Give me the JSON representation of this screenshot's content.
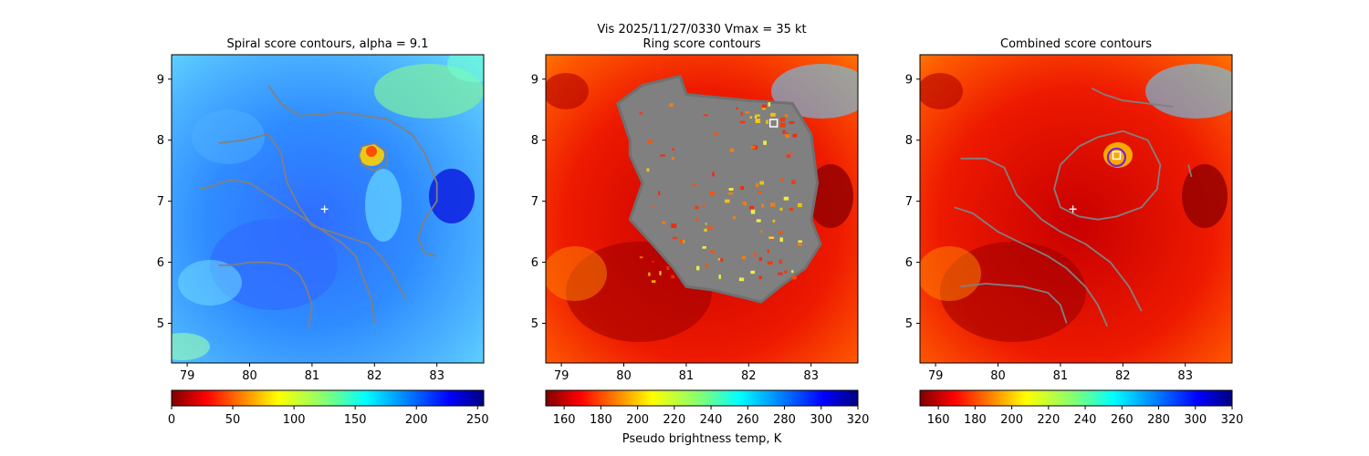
{
  "suptitle": "Vis  2025/11/27/0330    Vmax = 35 kt",
  "colorbar_label": "Pseudo brightness temp, K",
  "chart_data": [
    {
      "type": "heatmap",
      "title": "Spiral score contours, alpha =  9.1",
      "xlim": [
        78.75,
        83.75
      ],
      "ylim": [
        4.35,
        9.4
      ],
      "xticks": [
        "79",
        "80",
        "81",
        "82",
        "83"
      ],
      "yticks": [
        "5",
        "6",
        "7",
        "8",
        "9"
      ],
      "colorbar": {
        "min": 0,
        "max": 255,
        "ticks": [
          "0",
          "50",
          "100",
          "150",
          "200",
          "250"
        ]
      },
      "colormap": "jet_r",
      "center_marker": [
        81.2,
        6.87
      ],
      "contours": [
        [
          [
            80.95,
            4.92
          ],
          [
            81.0,
            5.3
          ],
          [
            80.9,
            5.6
          ],
          [
            80.8,
            5.8
          ],
          [
            80.6,
            5.95
          ],
          [
            80.3,
            6.0
          ],
          [
            80.0,
            6.0
          ],
          [
            79.7,
            5.95
          ],
          [
            79.5,
            5.95
          ]
        ],
        [
          [
            82.0,
            5.0
          ],
          [
            81.95,
            5.4
          ],
          [
            81.8,
            5.8
          ],
          [
            81.7,
            6.1
          ],
          [
            81.5,
            6.3
          ],
          [
            81.2,
            6.5
          ],
          [
            80.9,
            6.7
          ],
          [
            80.6,
            6.9
          ],
          [
            80.3,
            7.1
          ],
          [
            80.0,
            7.3
          ],
          [
            79.7,
            7.35
          ],
          [
            79.4,
            7.25
          ],
          [
            79.2,
            7.2
          ]
        ],
        [
          [
            82.5,
            5.4
          ],
          [
            82.3,
            5.8
          ],
          [
            82.1,
            6.1
          ],
          [
            81.9,
            6.3
          ],
          [
            81.6,
            6.4
          ],
          [
            81.3,
            6.5
          ],
          [
            81.0,
            6.6
          ],
          [
            80.8,
            6.9
          ],
          [
            80.6,
            7.3
          ],
          [
            80.5,
            7.8
          ],
          [
            80.3,
            8.1
          ],
          [
            79.9,
            8.0
          ],
          [
            79.5,
            7.95
          ]
        ],
        [
          [
            83.0,
            6.1
          ],
          [
            82.8,
            6.15
          ],
          [
            82.7,
            6.4
          ],
          [
            82.8,
            6.7
          ],
          [
            83.0,
            7.0
          ],
          [
            83.0,
            7.3
          ],
          [
            82.8,
            7.8
          ],
          [
            82.6,
            8.1
          ],
          [
            82.2,
            8.35
          ],
          [
            81.5,
            8.45
          ],
          [
            80.8,
            8.4
          ],
          [
            80.5,
            8.6
          ],
          [
            80.3,
            8.9
          ]
        ],
        [
          [
            81.8,
            7.9
          ],
          [
            82.0,
            7.95
          ],
          [
            82.2,
            7.8
          ],
          [
            82.2,
            7.6
          ],
          [
            82.0,
            7.5
          ],
          [
            81.8,
            7.6
          ],
          [
            81.75,
            7.75
          ],
          [
            81.8,
            7.9
          ]
        ]
      ]
    },
    {
      "type": "heatmap",
      "title": "Ring score contours",
      "xlim": [
        78.75,
        83.75
      ],
      "ylim": [
        4.35,
        9.4
      ],
      "xticks": [
        "79",
        "80",
        "81",
        "82",
        "83"
      ],
      "yticks": [
        "5",
        "6",
        "7",
        "8",
        "9"
      ],
      "colorbar": {
        "min": 150,
        "max": 320,
        "ticks": [
          "160",
          "180",
          "200",
          "220",
          "240",
          "260",
          "280",
          "300",
          "320"
        ]
      },
      "colormap": "jet_r",
      "square_marker": [
        82.4,
        8.28
      ],
      "contour_region": [
        [
          80.1,
          8.0
        ],
        [
          79.9,
          8.6
        ],
        [
          80.3,
          8.9
        ],
        [
          80.9,
          9.05
        ],
        [
          81.0,
          8.75
        ],
        [
          82.0,
          8.65
        ],
        [
          82.7,
          8.6
        ],
        [
          83.0,
          8.1
        ],
        [
          83.1,
          7.3
        ],
        [
          83.0,
          6.7
        ],
        [
          83.15,
          6.3
        ],
        [
          82.9,
          5.9
        ],
        [
          82.5,
          5.6
        ],
        [
          82.2,
          5.35
        ],
        [
          81.4,
          5.55
        ],
        [
          81.0,
          5.6
        ],
        [
          80.8,
          5.9
        ],
        [
          80.5,
          6.25
        ],
        [
          80.1,
          6.7
        ],
        [
          80.3,
          7.3
        ],
        [
          80.1,
          7.75
        ]
      ]
    },
    {
      "type": "heatmap",
      "title": "Combined score contours",
      "xlim": [
        78.75,
        83.75
      ],
      "ylim": [
        4.35,
        9.4
      ],
      "xticks": [
        "79",
        "80",
        "81",
        "82",
        "83"
      ],
      "yticks": [
        "5",
        "6",
        "7",
        "8",
        "9"
      ],
      "colorbar": {
        "min": 150,
        "max": 320,
        "ticks": [
          "160",
          "180",
          "200",
          "220",
          "240",
          "260",
          "280",
          "300",
          "320"
        ]
      },
      "colormap": "jet_r",
      "center_marker": [
        81.2,
        6.87
      ],
      "square_marker": [
        81.9,
        7.75
      ],
      "circle_marker": [
        81.9,
        7.72
      ],
      "contours": [
        [
          [
            81.1,
            5.0
          ],
          [
            81.0,
            5.3
          ],
          [
            80.8,
            5.5
          ],
          [
            80.4,
            5.6
          ],
          [
            79.8,
            5.65
          ],
          [
            79.4,
            5.6
          ]
        ],
        [
          [
            81.75,
            4.95
          ],
          [
            81.6,
            5.3
          ],
          [
            81.4,
            5.6
          ],
          [
            81.1,
            5.9
          ],
          [
            80.8,
            6.1
          ],
          [
            80.4,
            6.3
          ],
          [
            80.0,
            6.5
          ],
          [
            79.6,
            6.8
          ],
          [
            79.3,
            6.9
          ]
        ],
        [
          [
            82.3,
            5.2
          ],
          [
            82.1,
            5.6
          ],
          [
            81.8,
            6.0
          ],
          [
            81.4,
            6.3
          ],
          [
            81.0,
            6.5
          ],
          [
            80.7,
            6.7
          ],
          [
            80.3,
            7.1
          ],
          [
            80.1,
            7.55
          ],
          [
            79.8,
            7.7
          ],
          [
            79.4,
            7.7
          ]
        ],
        [
          [
            81.3,
            7.9
          ],
          [
            81.6,
            8.05
          ],
          [
            82.0,
            8.15
          ],
          [
            82.4,
            8.0
          ],
          [
            82.6,
            7.6
          ],
          [
            82.55,
            7.2
          ],
          [
            82.3,
            6.9
          ],
          [
            81.9,
            6.75
          ],
          [
            81.6,
            6.7
          ],
          [
            81.3,
            6.75
          ],
          [
            81.0,
            6.9
          ],
          [
            80.9,
            7.2
          ],
          [
            81.0,
            7.6
          ],
          [
            81.3,
            7.9
          ]
        ],
        [
          [
            82.8,
            8.55
          ],
          [
            82.4,
            8.6
          ],
          [
            82.0,
            8.65
          ],
          [
            81.7,
            8.75
          ],
          [
            81.5,
            8.85
          ]
        ],
        [
          [
            83.1,
            7.4
          ],
          [
            83.05,
            7.6
          ]
        ]
      ]
    }
  ]
}
